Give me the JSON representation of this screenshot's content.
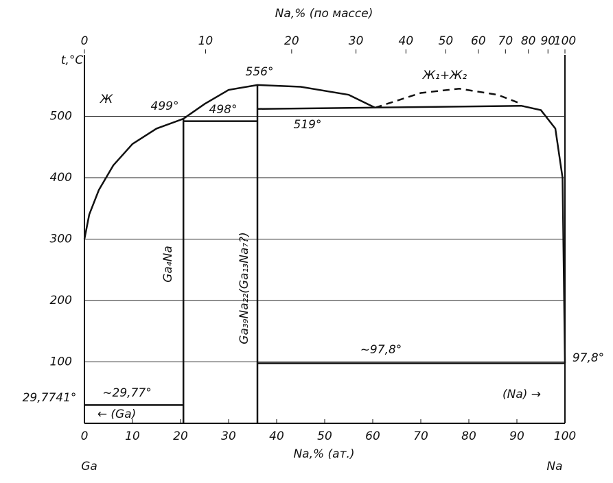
{
  "chart_data": {
    "type": "phase-diagram",
    "y_label": "t,°C",
    "x_label": "Na,% (ат.)",
    "x2_label": "Na,% (по массе)",
    "xlim": [
      0,
      100
    ],
    "ylim": [
      0,
      600
    ],
    "xticks": [
      0,
      10,
      20,
      30,
      40,
      50,
      60,
      70,
      80,
      90,
      100
    ],
    "yticks": [
      100,
      200,
      300,
      400,
      500
    ],
    "x2ticks": [
      0,
      10,
      20,
      30,
      40,
      50,
      60,
      70,
      80,
      90,
      100
    ],
    "grid": true,
    "series": [
      {
        "name": "liquidus-ga",
        "style": "solid",
        "x": [
          0,
          1,
          3,
          6,
          10,
          15,
          20.6
        ],
        "values": [
          300,
          340,
          380,
          420,
          455,
          480,
          496
        ]
      },
      {
        "name": "liquidus-mid",
        "style": "solid",
        "x": [
          20.6,
          25,
          30,
          36,
          45,
          55,
          60.5
        ],
        "values": [
          496,
          520,
          543,
          551,
          548,
          535,
          514
        ]
      },
      {
        "name": "miscibility-gap",
        "style": "dashed",
        "x": [
          60.5,
          70,
          78,
          86,
          91
        ],
        "values": [
          514,
          538,
          545,
          535,
          520
        ]
      },
      {
        "name": "liquidus-na",
        "style": "solid",
        "x": [
          91,
          95,
          98,
          99.5,
          100
        ],
        "values": [
          517,
          510,
          480,
          400,
          98
        ]
      },
      {
        "name": "monotectic",
        "style": "solid",
        "x": [
          36,
          91
        ],
        "values": [
          512,
          517
        ]
      },
      {
        "name": "peritectic",
        "style": "solid",
        "x": [
          20.6,
          36
        ],
        "values": [
          492,
          492
        ]
      },
      {
        "name": "ga4na",
        "style": "solid",
        "x": [
          20.6,
          20.6
        ],
        "values": [
          0,
          496
        ]
      },
      {
        "name": "ga39na22",
        "style": "solid",
        "x": [
          36,
          36
        ],
        "values": [
          0,
          551
        ]
      },
      {
        "name": "eutectic-na",
        "style": "solid",
        "x": [
          36,
          100
        ],
        "values": [
          97.8,
          97.8
        ]
      },
      {
        "name": "eutectic-ga",
        "style": "solid",
        "x": [
          0,
          20.6
        ],
        "values": [
          29.77,
          29.77
        ]
      }
    ],
    "annotations": [
      "Ж",
      "499°",
      "498°",
      "556°",
      "519°",
      "Ж₁+Ж₂",
      "Ga₄Na",
      "Ga₃₉Na₂₂(Ga₁₃Na₇?)",
      "~97,8°",
      "97,8°",
      "~29,77°",
      "29,7741°",
      "← (Ga)",
      "(Na) →",
      "Ga",
      "Na"
    ]
  }
}
